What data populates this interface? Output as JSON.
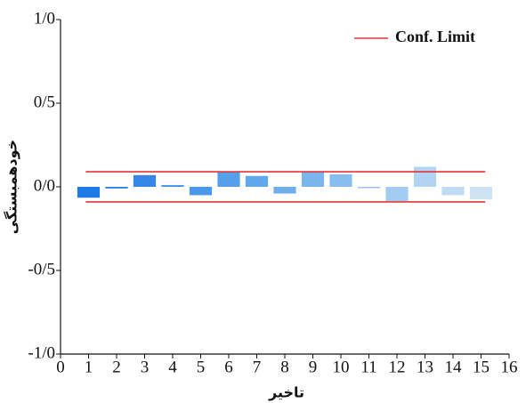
{
  "chart_data": {
    "type": "bar",
    "x_label": "تاخیر",
    "y_label": "خودهمبستگی",
    "x": [
      1,
      2,
      3,
      4,
      5,
      6,
      7,
      8,
      9,
      10,
      11,
      12,
      13,
      14,
      15
    ],
    "values": [
      -0.065,
      -0.01,
      0.07,
      0.01,
      -0.05,
      0.09,
      0.065,
      -0.04,
      0.09,
      0.075,
      -0.005,
      -0.085,
      0.12,
      -0.05,
      -0.075
    ],
    "colors": [
      "#1f7ae6",
      "#2a80e7",
      "#3588e8",
      "#4090e9",
      "#4b97ea",
      "#56a0eb",
      "#62a7ec",
      "#6eaeed",
      "#7ab5ee",
      "#87bdef",
      "#94c5f0",
      "#a2ccf1",
      "#b0d4f2",
      "#bfdbf3",
      "#cde3f4"
    ],
    "conf_limit": {
      "name": "Conf. Limit",
      "color": "#e03535",
      "values": [
        0.09,
        -0.09
      ]
    },
    "xlim": [
      0,
      16
    ],
    "xticks": [
      0,
      1,
      2,
      3,
      4,
      5,
      6,
      7,
      8,
      9,
      10,
      11,
      12,
      13,
      14,
      15,
      16
    ],
    "ylim": [
      -1,
      1
    ],
    "yticks": [
      {
        "value": -1,
        "label": "-1/0"
      },
      {
        "value": -0.5,
        "label": "-0/5"
      },
      {
        "value": 0,
        "label": "0/0"
      },
      {
        "value": 0.5,
        "label": "0/5"
      },
      {
        "value": 1,
        "label": "1/0"
      }
    ]
  }
}
